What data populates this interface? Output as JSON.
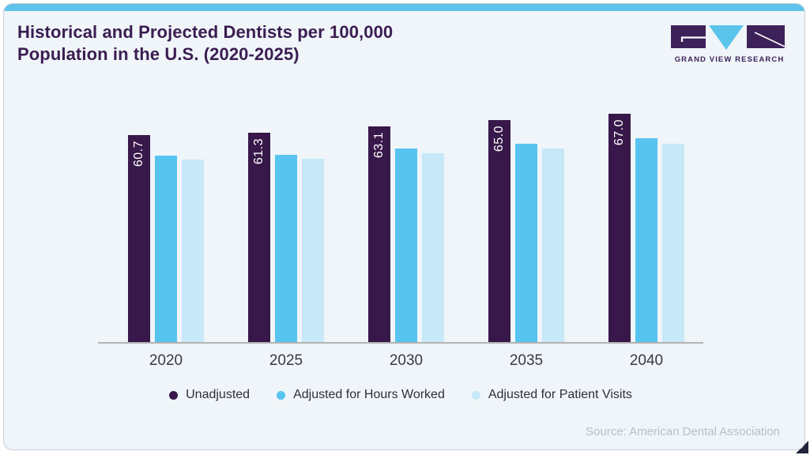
{
  "title": {
    "line1": "Historical and Projected Dentists per 100,000",
    "line2": "Population in the U.S. (2020-2025)"
  },
  "logo": {
    "text": "GRAND VIEW RESEARCH"
  },
  "chart_data": {
    "type": "bar",
    "title": "Historical and Projected Dentists per 100,000 Population in the U.S. (2020-2025)",
    "categories": [
      "2020",
      "2025",
      "2030",
      "2035",
      "2040"
    ],
    "series": [
      {
        "name": "Unadjusted",
        "color": "#38184a",
        "values": [
          60.7,
          61.3,
          63.1,
          65.0,
          67.0
        ],
        "value_labels": [
          "60.7",
          "61.3",
          "63.1",
          "65.0",
          "67.0"
        ]
      },
      {
        "name": "Adjusted for Hours Worked",
        "color": "#57c4f0",
        "values": [
          54.6,
          54.8,
          56.6,
          58.1,
          59.7
        ],
        "values_estimated_from_pixels": true
      },
      {
        "name": "Adjusted for Patient Visits",
        "color": "#c6e8f8",
        "values": [
          53.4,
          53.6,
          55.3,
          56.7,
          58.1
        ],
        "values_estimated_from_pixels": true
      }
    ],
    "xlabel": "",
    "ylabel": "",
    "ylim": [
      0,
      70
    ],
    "grid": false,
    "legend_position": "bottom",
    "value_label_style": "white, rotated 90deg, inside top of Unadjusted bars only"
  },
  "source": "Source: American Dental Association",
  "colors": {
    "top_accent_bar": "#5ec2e9",
    "card_background": "#eff5f9",
    "card_border": "#c9ced5",
    "title_text": "#3b1d52",
    "axis_line": "#b3b3b3",
    "tick_text": "#3a3a44",
    "legend_text": "#2f2f38",
    "source_text": "#b9bfc7",
    "brand_purple": "#3d2259",
    "brand_blue": "#5bc4ea",
    "corner_fold": "#23233a"
  }
}
